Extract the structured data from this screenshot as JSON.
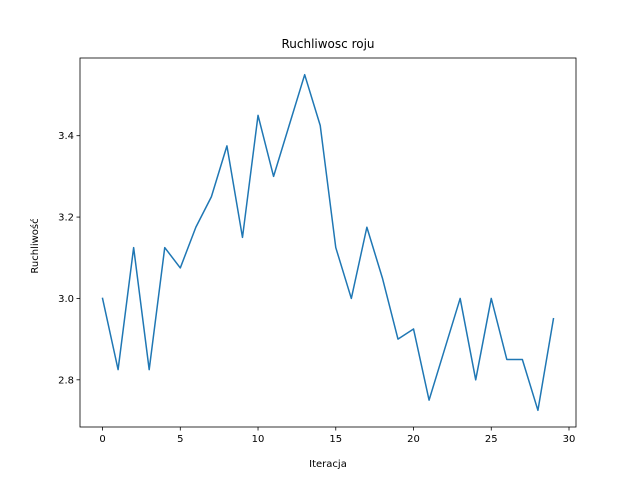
{
  "chart_data": {
    "type": "line",
    "title": "Ruchliwosc roju",
    "xlabel": "Iteracja",
    "ylabel": "Ruchliwość",
    "xlim": [
      -1.45,
      30.45
    ],
    "ylim": [
      2.684,
      3.591
    ],
    "xticks": [
      0,
      5,
      10,
      15,
      20,
      25,
      30
    ],
    "yticks": [
      2.8,
      3.0,
      3.2,
      3.4
    ],
    "ytick_labels": [
      "2.8",
      "3.0",
      "3.2",
      "3.4"
    ],
    "grid": false,
    "series": [
      {
        "color": "#1f77b4",
        "x": [
          0,
          1,
          2,
          3,
          4,
          5,
          6,
          7,
          8,
          9,
          10,
          11,
          12,
          13,
          14,
          15,
          16,
          17,
          18,
          19,
          20,
          21,
          22,
          23,
          24,
          25,
          26,
          27,
          28,
          29
        ],
        "y": [
          3.0,
          2.825,
          3.125,
          2.825,
          3.125,
          3.075,
          3.175,
          3.25,
          3.375,
          3.15,
          3.45,
          3.3,
          3.425,
          3.55,
          3.425,
          3.125,
          3.0,
          3.175,
          3.05,
          2.9,
          2.925,
          2.75,
          2.875,
          3.0,
          2.8,
          3.0,
          2.85,
          2.85,
          2.725,
          2.95
        ]
      }
    ]
  }
}
